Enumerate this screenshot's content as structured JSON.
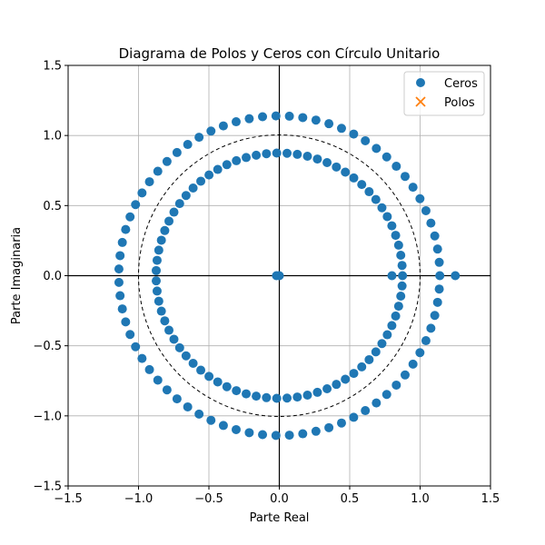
{
  "chart_data": {
    "type": "scatter",
    "title": "Diagrama de Polos y Ceros con Círculo Unitario",
    "xlabel": "Parte Real",
    "ylabel": "Parte Imaginaria",
    "xlim": [
      -1.5,
      1.5
    ],
    "ylim": [
      -1.5,
      1.5
    ],
    "x_ticks": [
      -1.5,
      -1.0,
      -0.5,
      0.0,
      0.5,
      1.0,
      1.5
    ],
    "y_ticks": [
      -1.5,
      -1.0,
      -0.5,
      0.0,
      0.5,
      1.0,
      1.5
    ],
    "x_tick_labels": [
      "−1.5",
      "−1.0",
      "−0.5",
      "0.0",
      "0.5",
      "1.0",
      "1.5"
    ],
    "y_tick_labels": [
      "−1.5",
      "−1.0",
      "−0.5",
      "0.0",
      "0.5",
      "1.0",
      "1.5"
    ],
    "grid": true,
    "legend_position": "top-right",
    "unit_circle": {
      "radius": 1.0,
      "style": "dashed"
    },
    "series": [
      {
        "name": "Ceros",
        "marker": "circle",
        "color": "#1f77b4",
        "rings": [
          {
            "radius": 1.14,
            "count": 75
          },
          {
            "radius": 0.875,
            "count": 75
          }
        ],
        "points": [
          [
            -0.02,
            0.0
          ],
          [
            0.0,
            0.0
          ],
          [
            0.8,
            0.0
          ],
          [
            1.25,
            0.0
          ]
        ]
      },
      {
        "name": "Polos",
        "marker": "x",
        "color": "#ff7f0e",
        "points": []
      }
    ]
  }
}
